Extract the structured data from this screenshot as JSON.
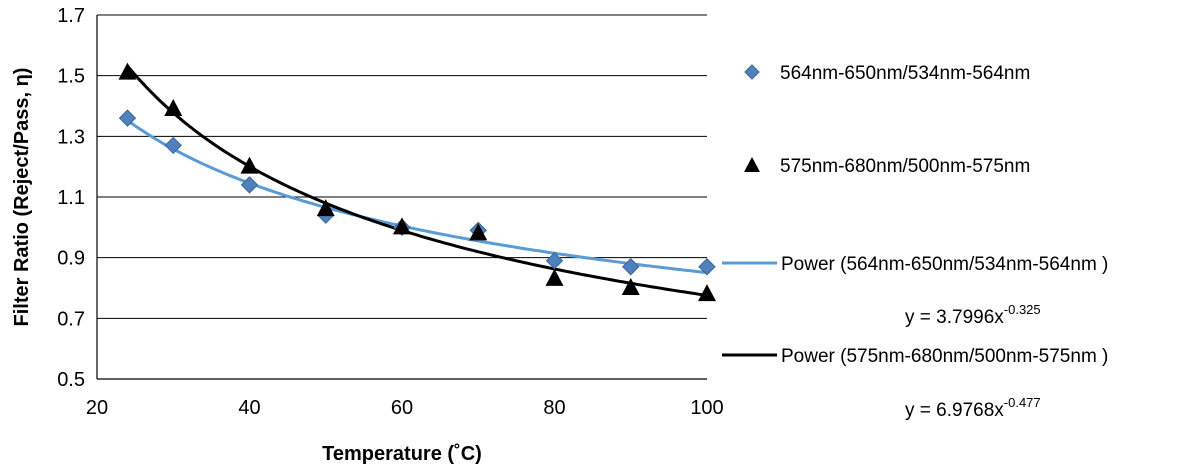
{
  "chart_data": {
    "type": "scatter",
    "xlabel": "Temperature (˚C)",
    "ylabel": "Filter Ratio (Reject/Pass, η)",
    "xlim": [
      20,
      100
    ],
    "ylim": [
      0.5,
      1.7
    ],
    "xticks": [
      "20",
      "40",
      "60",
      "80",
      "100"
    ],
    "yticks": [
      "0.5",
      "0.7",
      "0.9",
      "1.1",
      "1.3",
      "1.5",
      "1.7"
    ],
    "grid": "horizontal",
    "legend_position": "right",
    "series": [
      {
        "name": "564nm-650nm/534nm-564nm",
        "marker": "diamond",
        "color": "#4F81BD",
        "x": [
          24,
          30,
          40,
          50,
          60,
          70,
          80,
          90,
          100
        ],
        "y": [
          1.36,
          1.27,
          1.14,
          1.04,
          1.0,
          0.99,
          0.89,
          0.87,
          0.87
        ]
      },
      {
        "name": "575nm-680nm/500nm-575nm",
        "marker": "triangle",
        "color": "#000000",
        "x": [
          24,
          30,
          40,
          50,
          60,
          70,
          80,
          90,
          100
        ],
        "y": [
          1.51,
          1.39,
          1.2,
          1.06,
          1.0,
          0.98,
          0.83,
          0.8,
          0.78
        ]
      }
    ],
    "trendlines": [
      {
        "name": "Power (564nm-650nm/534nm-564nm )",
        "color": "#5B9BD5",
        "a": 3.7996,
        "b": -0.325,
        "x_range": [
          24,
          100
        ],
        "equation_prefix": "y = 3.7996x",
        "equation_exponent": "-0.325"
      },
      {
        "name": "Power (575nm-680nm/500nm-575nm )",
        "color": "#000000",
        "a": 6.9768,
        "b": -0.477,
        "x_range": [
          24,
          100
        ],
        "equation_prefix": "y = 6.9768x",
        "equation_exponent": "-0.477"
      }
    ]
  }
}
